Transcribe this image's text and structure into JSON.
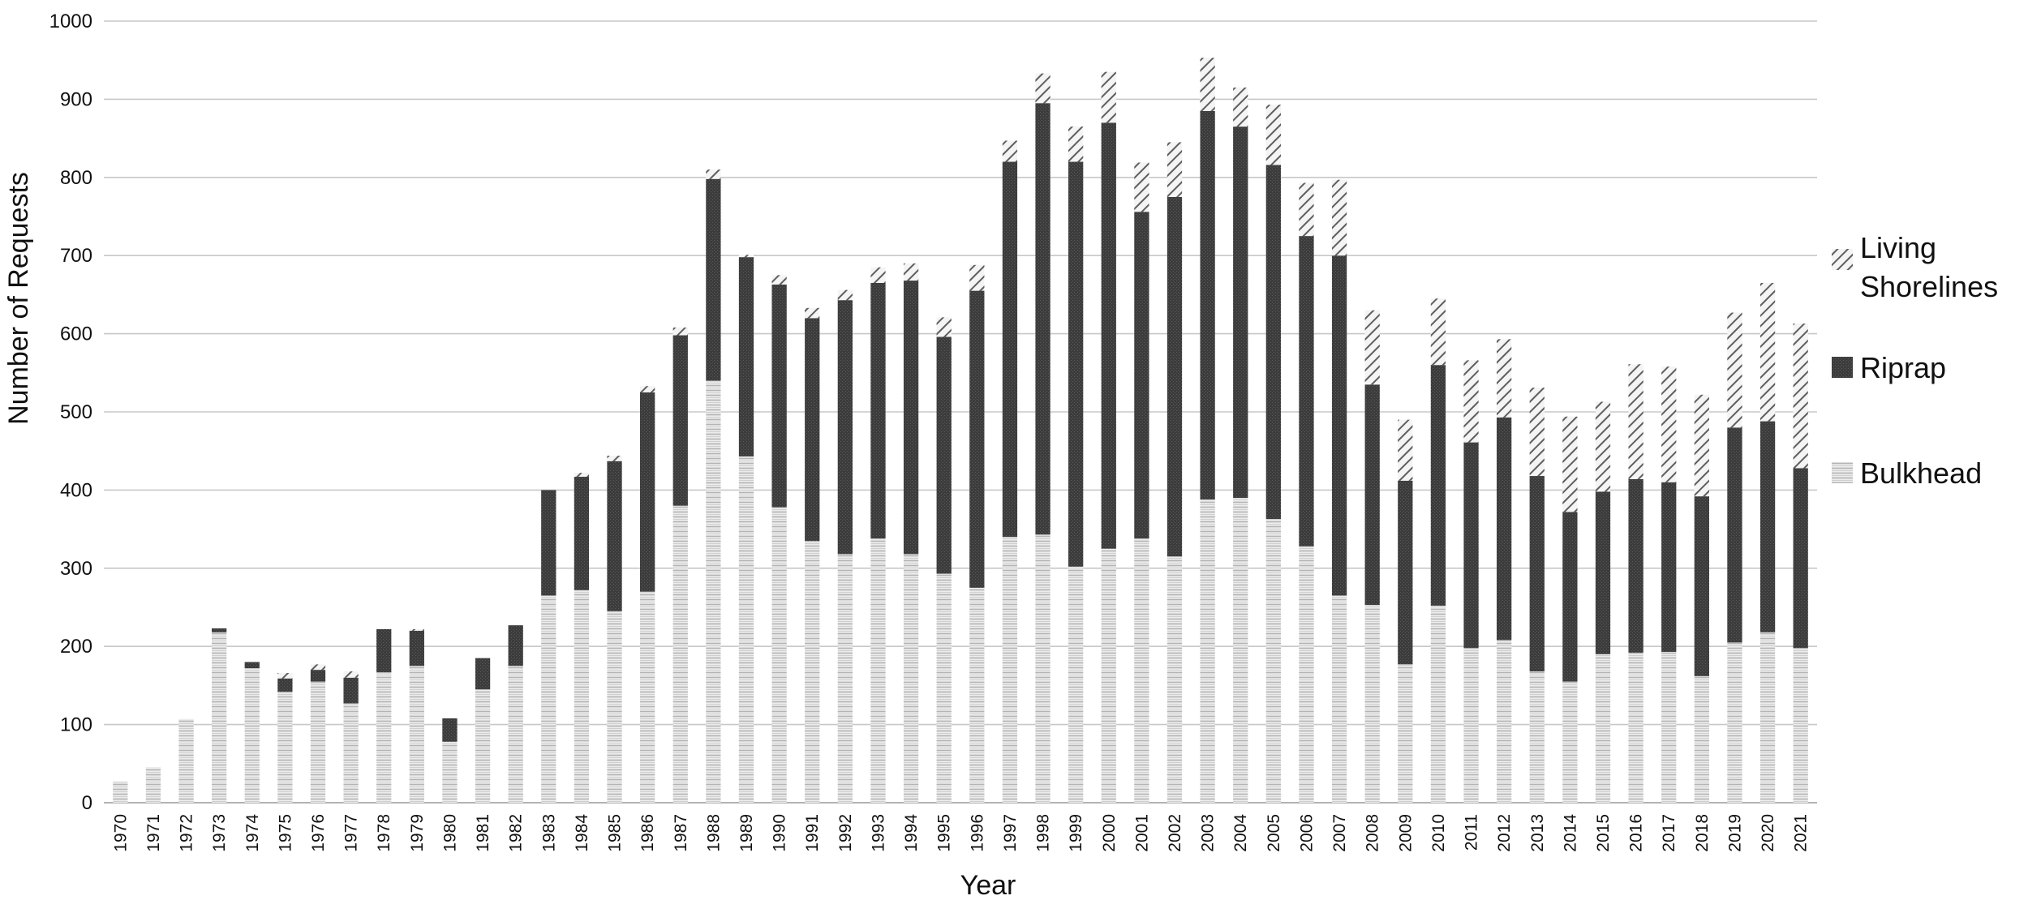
{
  "chart_data": {
    "type": "bar",
    "stacked": true,
    "title": "",
    "xlabel": "Year",
    "ylabel": "Number of Requests",
    "ylim": [
      0,
      1000
    ],
    "yticks": [
      0,
      100,
      200,
      300,
      400,
      500,
      600,
      700,
      800,
      900,
      1000
    ],
    "grid": true,
    "legend_position": "right",
    "categories": [
      "1970",
      "1971",
      "1972",
      "1973",
      "1974",
      "1975",
      "1976",
      "1977",
      "1978",
      "1979",
      "1980",
      "1981",
      "1982",
      "1983",
      "1984",
      "1985",
      "1986",
      "1987",
      "1988",
      "1989",
      "1990",
      "1991",
      "1992",
      "1993",
      "1994",
      "1995",
      "1996",
      "1997",
      "1998",
      "1999",
      "2000",
      "2001",
      "2002",
      "2003",
      "2004",
      "2005",
      "2006",
      "2007",
      "2008",
      "2009",
      "2010",
      "2011",
      "2012",
      "2013",
      "2014",
      "2015",
      "2016",
      "2017",
      "2018",
      "2019",
      "2020",
      "2021"
    ],
    "series": [
      {
        "name": "Bulkhead",
        "values": [
          27,
          45,
          107,
          218,
          172,
          142,
          155,
          127,
          167,
          175,
          78,
          145,
          175,
          265,
          272,
          245,
          270,
          380,
          540,
          443,
          378,
          335,
          318,
          338,
          318,
          293,
          275,
          340,
          343,
          302,
          325,
          338,
          315,
          388,
          390,
          363,
          328,
          265,
          253,
          177,
          252,
          198,
          208,
          168,
          155,
          190,
          192,
          193,
          162,
          205,
          218,
          198
        ]
      },
      {
        "name": "Riprap",
        "values": [
          0,
          0,
          0,
          5,
          8,
          17,
          15,
          33,
          55,
          45,
          30,
          40,
          52,
          135,
          145,
          192,
          255,
          218,
          258,
          255,
          285,
          285,
          325,
          327,
          350,
          303,
          380,
          480,
          552,
          518,
          545,
          418,
          460,
          497,
          475,
          453,
          397,
          435,
          282,
          235,
          308,
          263,
          285,
          250,
          217,
          208,
          222,
          217,
          230,
          275,
          270,
          230
        ]
      },
      {
        "name": "Living Shorelines",
        "values": [
          0,
          0,
          0,
          0,
          0,
          7,
          7,
          8,
          0,
          2,
          0,
          0,
          0,
          0,
          5,
          7,
          8,
          10,
          12,
          3,
          12,
          13,
          13,
          20,
          22,
          25,
          33,
          27,
          38,
          45,
          65,
          63,
          70,
          68,
          50,
          77,
          68,
          97,
          95,
          78,
          85,
          105,
          100,
          113,
          122,
          115,
          147,
          148,
          130,
          147,
          177,
          185
        ]
      }
    ],
    "legend": [
      "Living Shorelines",
      "Riprap",
      "Bulkhead"
    ],
    "colors": {
      "Bulkhead": "#e6e6e6",
      "Riprap": "#404040",
      "Living Shorelines": "#f0f0f0",
      "grid": "#c8c8c8",
      "axis": "#999999"
    }
  }
}
